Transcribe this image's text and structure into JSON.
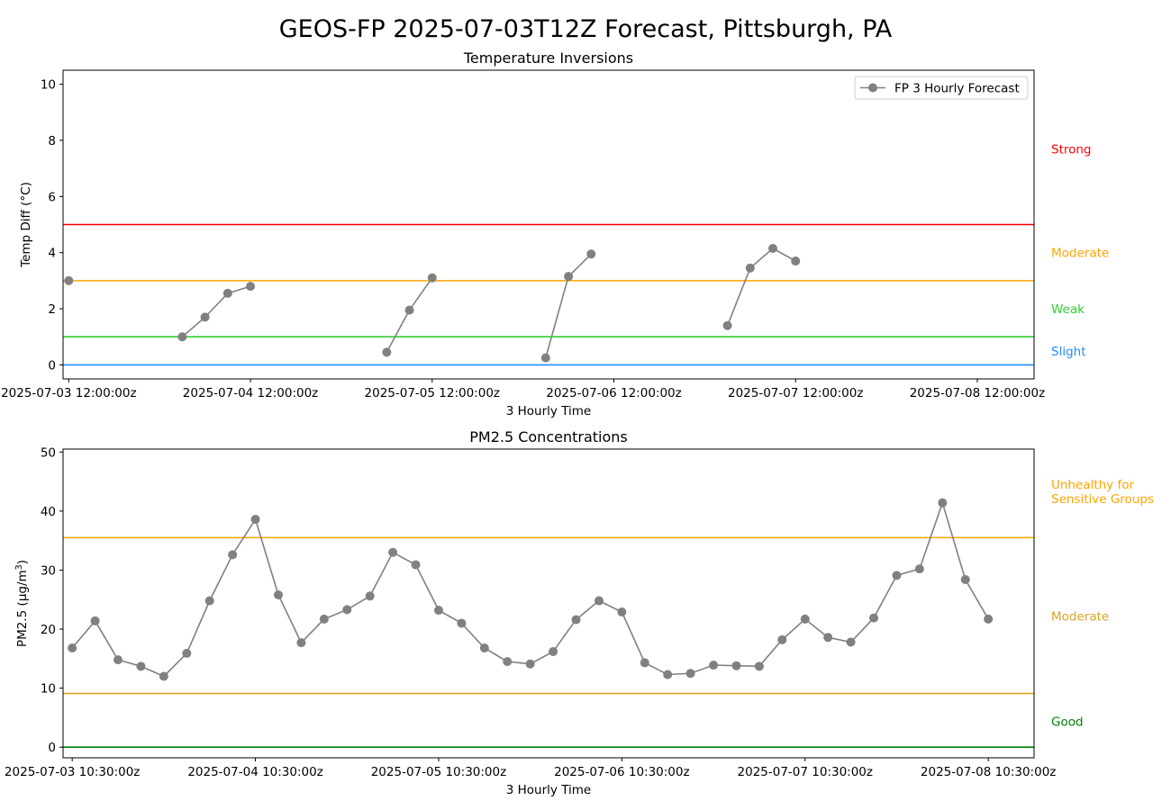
{
  "figure": {
    "title": "GEOS-FP 2025-07-03T12Z Forecast, Pittsburgh, PA"
  },
  "chart_data": [
    {
      "type": "line",
      "title": "Temperature Inversions",
      "xlabel": "3 Hourly Time",
      "ylabel": "Temp Diff (°C)",
      "ylim": [
        -0.5,
        10.5
      ],
      "yticks": [
        0,
        2,
        4,
        6,
        8,
        10
      ],
      "x_range_hours": [
        -0.75,
        127.5
      ],
      "x_tick_hours": [
        0,
        24,
        48,
        72,
        96,
        120
      ],
      "xtick_labels": [
        "2025-07-03 12:00:00z",
        "2025-07-04 12:00:00z",
        "2025-07-05 12:00:00z",
        "2025-07-06 12:00:00z",
        "2025-07-07 12:00:00z",
        "2025-07-08 12:00:00z"
      ],
      "legend": {
        "position": "top-right",
        "entries": [
          "FP 3 Hourly Forecast"
        ]
      },
      "series": [
        {
          "name": "FP 3 Hourly Forecast",
          "color": "#808080",
          "segments": [
            [
              [
                0,
                3.0
              ]
            ],
            [
              [
                15,
                1.0
              ],
              [
                18,
                1.7
              ],
              [
                21,
                2.55
              ],
              [
                24,
                2.8
              ]
            ],
            [
              [
                42,
                0.45
              ],
              [
                45,
                1.95
              ],
              [
                48,
                3.1
              ]
            ],
            [
              [
                63,
                0.25
              ],
              [
                66,
                3.15
              ],
              [
                69,
                3.95
              ]
            ],
            [
              [
                87,
                1.4
              ],
              [
                90,
                3.45
              ],
              [
                93,
                4.15
              ],
              [
                96,
                3.7
              ]
            ]
          ]
        }
      ],
      "thresholds": [
        {
          "value": 0,
          "color": "#1f8fff"
        },
        {
          "value": 1,
          "color": "#32cd32"
        },
        {
          "value": 3,
          "color": "#ffa500"
        },
        {
          "value": 5,
          "color": "#ff0000"
        }
      ],
      "category_labels": [
        {
          "label": "Strong",
          "at": 7.7,
          "color": "#ff0000"
        },
        {
          "label": "Moderate",
          "at": 4.0,
          "color": "#ffa500"
        },
        {
          "label": "Weak",
          "at": 2.0,
          "color": "#32cd32"
        },
        {
          "label": "Slight",
          "at": 0.5,
          "color": "#1f8fff"
        }
      ]
    },
    {
      "type": "line",
      "title": "PM2.5 Concentrations",
      "xlabel": "3 Hourly Time",
      "ylabel": "PM2.5 (μg/m",
      "ylabel_sup": "3",
      "ylabel_end": ")",
      "ylim": [
        -1.8,
        50.5
      ],
      "yticks": [
        0,
        10,
        20,
        30,
        40,
        50
      ],
      "x_range_hours": [
        -1.2,
        126.0
      ],
      "x_tick_hours": [
        0,
        24,
        48,
        72,
        96,
        120
      ],
      "xtick_labels": [
        "2025-07-03 10:30:00z",
        "2025-07-04 10:30:00z",
        "2025-07-05 10:30:00z",
        "2025-07-06 10:30:00z",
        "2025-07-07 10:30:00z",
        "2025-07-08 10:30:00z"
      ],
      "series": [
        {
          "color": "#808080",
          "x_step_hours": 3,
          "values": [
            16.8,
            21.4,
            14.8,
            13.7,
            12.0,
            15.9,
            24.8,
            32.6,
            38.6,
            25.8,
            17.7,
            21.7,
            23.3,
            25.6,
            33.0,
            30.9,
            23.2,
            21.0,
            16.8,
            14.5,
            14.1,
            16.2,
            21.6,
            24.8,
            22.9,
            14.3,
            12.3,
            12.5,
            13.9,
            13.8,
            13.7,
            18.2,
            21.7,
            18.6,
            17.8,
            21.9,
            29.1,
            30.2,
            41.4,
            28.4,
            21.7
          ]
        }
      ],
      "thresholds": [
        {
          "value": 0,
          "color": "#008000"
        },
        {
          "value": 9.1,
          "color": "#daa520"
        },
        {
          "value": 35.5,
          "color": "#ffa500"
        }
      ],
      "category_labels": [
        {
          "label": "Unhealthy for",
          "label2": "Sensitive Groups",
          "at": 43.3,
          "color": "#ffa500"
        },
        {
          "label": "Moderate",
          "at": 22.2,
          "color": "#daa520"
        },
        {
          "label": "Good",
          "at": 4.4,
          "color": "#008000"
        }
      ]
    }
  ]
}
